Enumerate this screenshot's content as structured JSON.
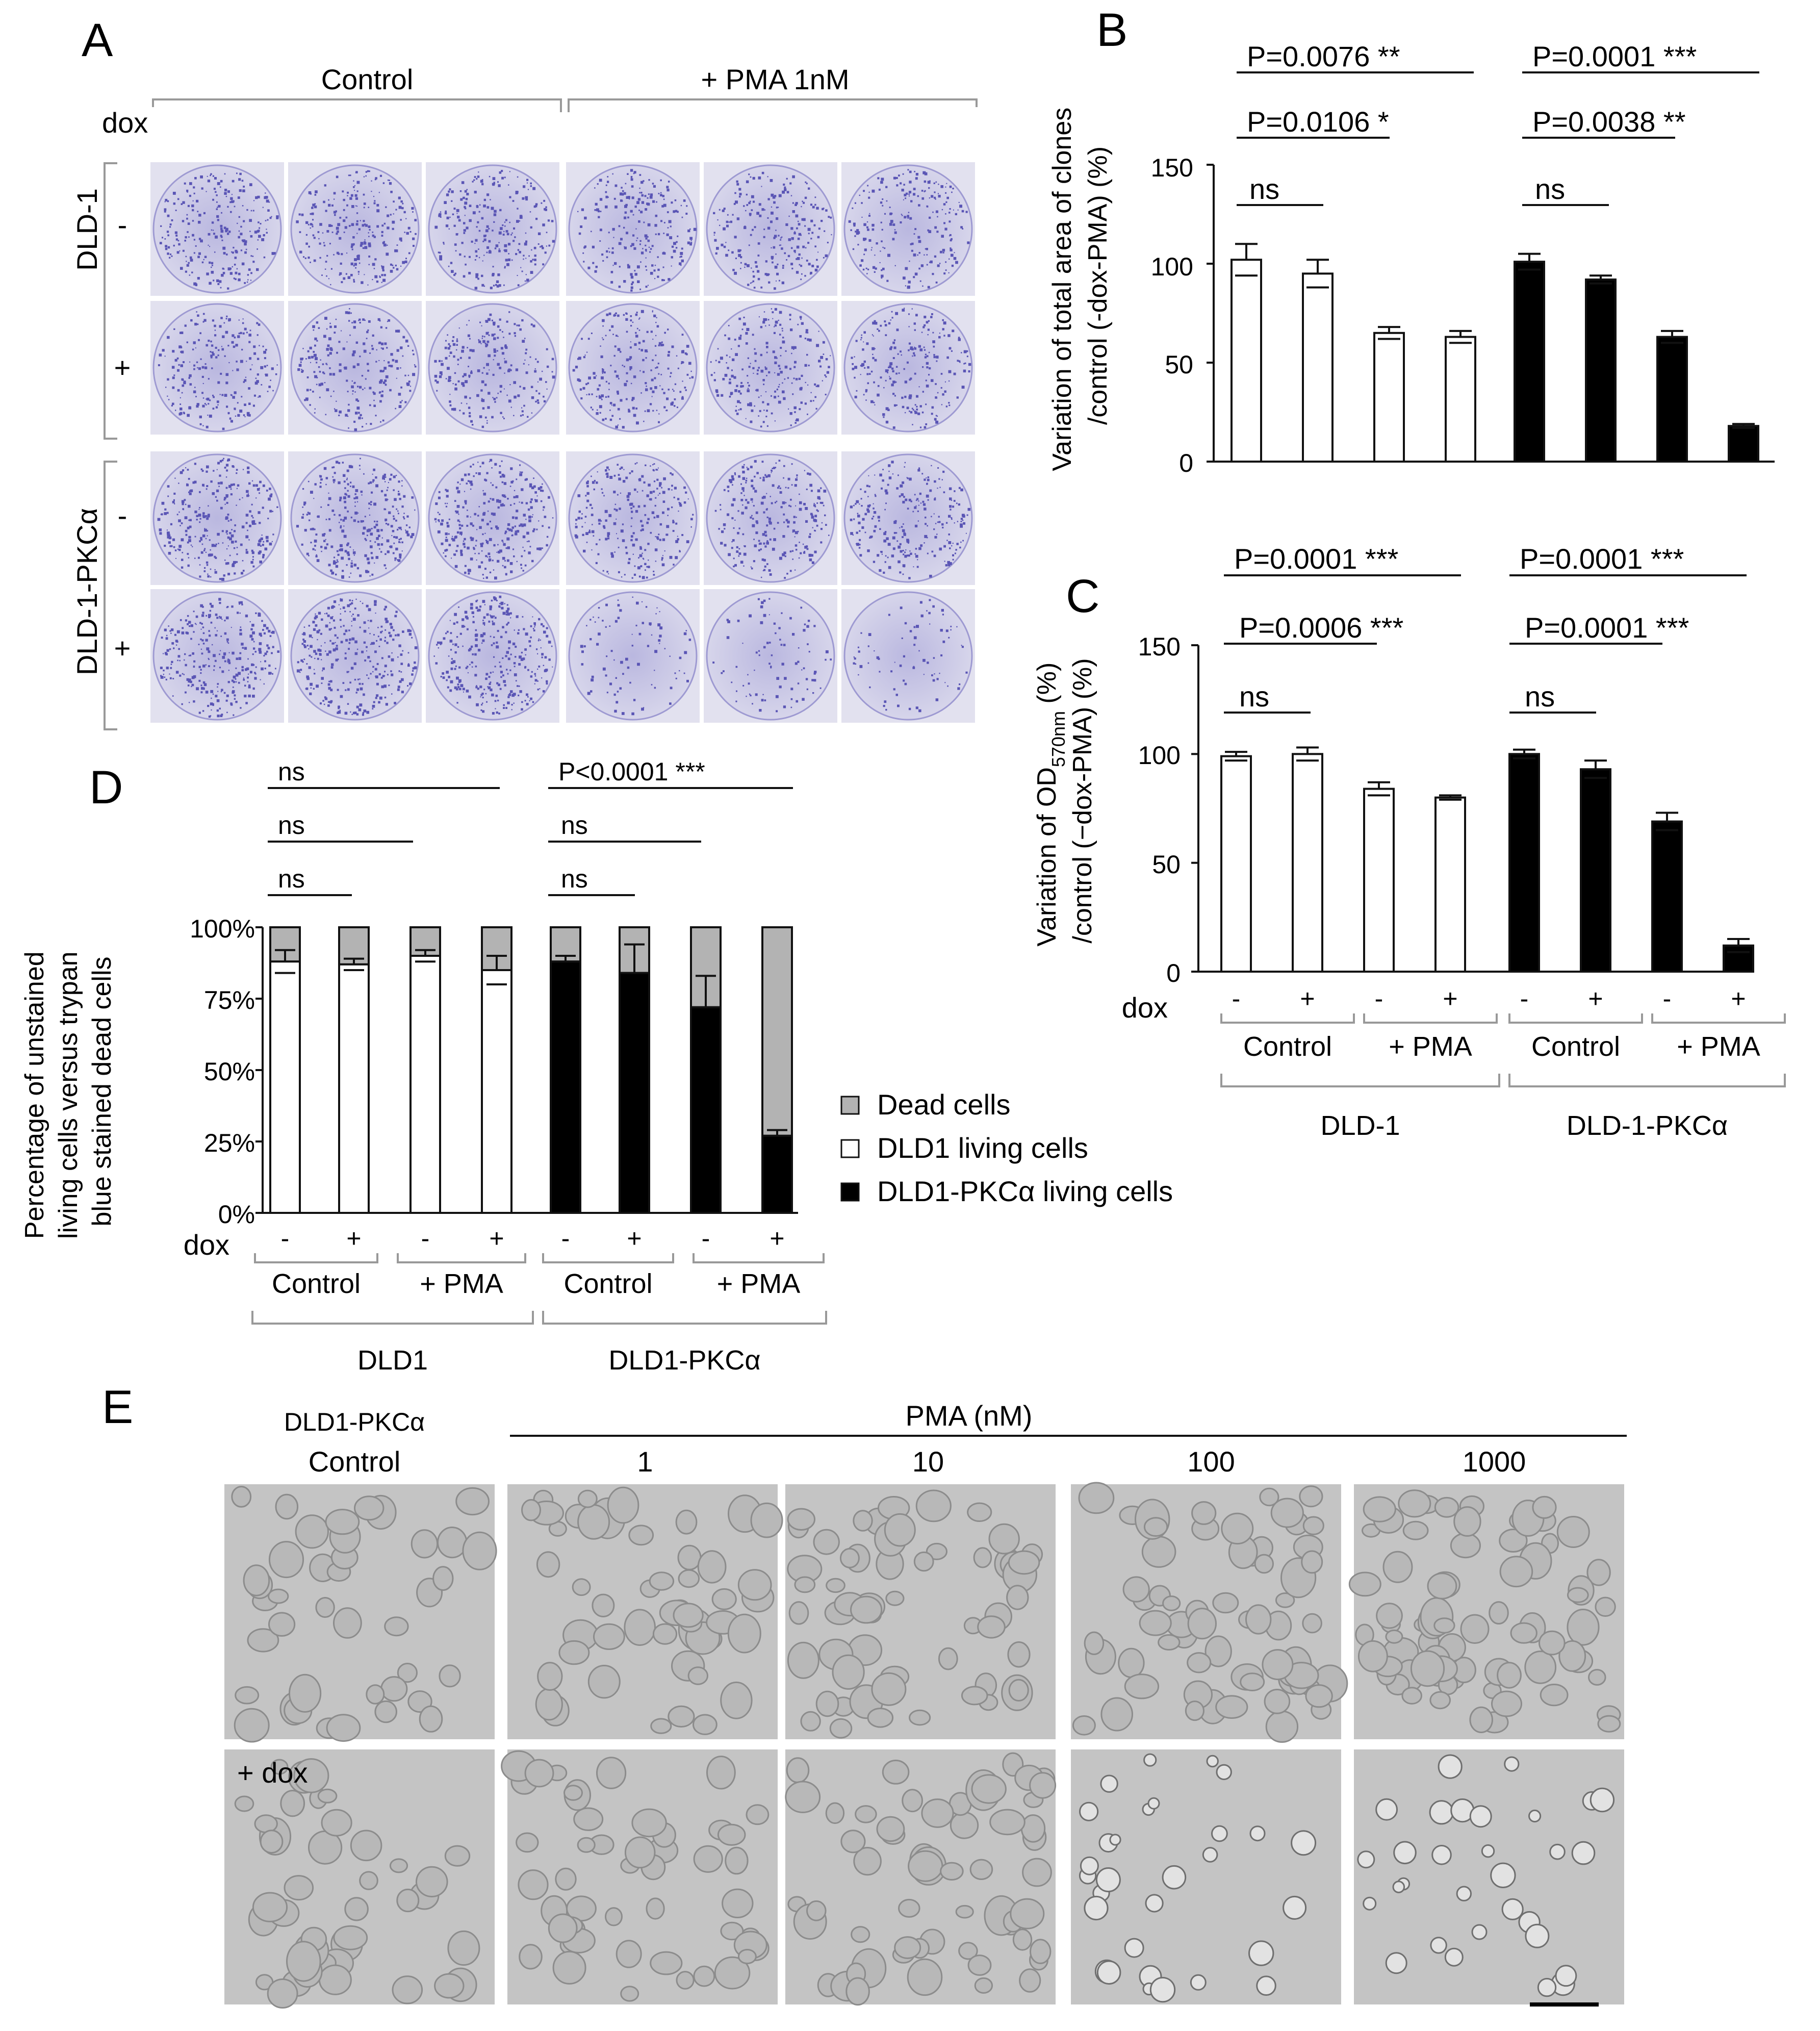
{
  "panelA": {
    "letter": "A",
    "group_labels": [
      "Control",
      "+ PMA 1nM"
    ],
    "dox_label": "dox",
    "row_groups": [
      "DLD-1",
      "DLD-1-PKCα"
    ],
    "dox_signs": [
      "-",
      "+",
      "-",
      "+"
    ]
  },
  "panelB": {
    "letter": "B",
    "ylabel_line1": "Variation of total  area of clones",
    "ylabel_line2": "/control (-dox-PMA) (%)",
    "ticks": [
      "0",
      "50",
      "100",
      "150"
    ],
    "sig": [
      {
        "text": "P=0.0076 **"
      },
      {
        "text": "P=0.0106 *"
      },
      {
        "text": "ns"
      },
      {
        "text": "P=0.0001 ***"
      },
      {
        "text": "P=0.0038 **"
      },
      {
        "text": "ns"
      }
    ]
  },
  "panelC": {
    "letter": "C",
    "ylabel_line1": "Variation of OD",
    "ylabel_sub": "570nm",
    "ylabel_line2": "/control (−dox-PMA) (%)",
    "ticks": [
      "0",
      "50",
      "100",
      "150"
    ],
    "dox_label": "dox",
    "dox_signs": [
      "-",
      "+",
      "-",
      "+",
      "-",
      "+",
      "-",
      "+"
    ],
    "treatments": [
      "Control",
      "+ PMA",
      "Control",
      "+ PMA"
    ],
    "cell_lines": [
      "DLD-1",
      "DLD-1-PKCα"
    ],
    "sig": [
      {
        "text": "P=0.0001 ***"
      },
      {
        "text": "P=0.0006 ***"
      },
      {
        "text": "ns"
      },
      {
        "text": "P=0.0001 ***"
      },
      {
        "text": "P=0.0001 ***"
      },
      {
        "text": "ns"
      }
    ]
  },
  "panelD": {
    "letter": "D",
    "ylabel_line1": "Percentage of unstained",
    "ylabel_line2": "living cells versus trypan",
    "ylabel_line3": "blue stained dead cells",
    "ticks": [
      "0%",
      "25%",
      "50%",
      "75%",
      "100%"
    ],
    "dox_label": "dox",
    "dox_signs": [
      "-",
      "+",
      "-",
      "+",
      "-",
      "+",
      "-",
      "+"
    ],
    "treatments": [
      "Control",
      "+ PMA",
      "Control",
      "+ PMA"
    ],
    "cell_lines": [
      "DLD1",
      "DLD1-PKCα"
    ],
    "legend": [
      "Dead cells",
      "DLD1 living cells",
      "DLD1-PKCα living cells"
    ],
    "sig": [
      {
        "text": "ns"
      },
      {
        "text": "ns"
      },
      {
        "text": "ns"
      },
      {
        "text": "P<0.0001 ***"
      },
      {
        "text": "ns"
      },
      {
        "text": "ns"
      }
    ]
  },
  "panelE": {
    "letter": "E",
    "row_header_line1": "DLD1-PKCα",
    "row_header_line2": "Control",
    "pma_title": "PMA (nM)",
    "concentrations": [
      "1",
      "10",
      "100",
      "1000"
    ],
    "dox_tag": "+ dox"
  },
  "colors": {
    "dead": "#b3b3b3",
    "dld1_living": "#ffffff",
    "pkc_living": "#000000",
    "stain": "#5a55b5",
    "plate_bg": "#e2e1ef",
    "micro_bg": "#c4c4c4"
  },
  "chart_data": [
    {
      "type": "bar",
      "ylabel": "Variation of total  area of clones /control (-dox-PMA) (%)",
      "ylim": [
        0,
        150
      ],
      "categories": [
        "DLD-1 Control -dox",
        "DLD-1 Control +dox",
        "DLD-1 +PMA -dox",
        "DLD-1 +PMA +dox",
        "DLD-1-PKCα Control -dox",
        "DLD-1-PKCα Control +dox",
        "DLD-1-PKCα +PMA -dox",
        "DLD-1-PKCα +PMA +dox"
      ],
      "values": [
        102,
        95,
        65,
        63,
        101,
        92,
        63,
        18
      ],
      "errors": [
        8,
        7,
        3,
        3,
        4,
        2,
        3,
        1
      ],
      "fills": [
        "#ffffff",
        "#ffffff",
        "#ffffff",
        "#ffffff",
        "#000000",
        "#000000",
        "#000000",
        "#000000"
      ]
    },
    {
      "type": "bar",
      "ylabel": "Variation of OD570nm /control (−dox-PMA) (%)",
      "ylim": [
        0,
        150
      ],
      "categories": [
        "DLD-1 Control -dox",
        "DLD-1 Control +dox",
        "DLD-1 +PMA -dox",
        "DLD-1 +PMA +dox",
        "DLD-1-PKCα Control -dox",
        "DLD-1-PKCα Control +dox",
        "DLD-1-PKCα +PMA -dox",
        "DLD-1-PKCα +PMA +dox"
      ],
      "values": [
        99,
        100,
        84,
        80,
        100,
        93,
        69,
        12
      ],
      "errors": [
        2,
        3,
        3,
        1,
        2,
        4,
        4,
        3
      ],
      "fills": [
        "#ffffff",
        "#ffffff",
        "#ffffff",
        "#ffffff",
        "#000000",
        "#000000",
        "#000000",
        "#000000"
      ]
    },
    {
      "type": "bar",
      "stacked": true,
      "ylabel": "Percentage of unstained living cells versus trypan blue stained dead cells",
      "ylim": [
        0,
        100
      ],
      "categories": [
        "DLD1 Control -dox",
        "DLD1 Control +dox",
        "DLD1 +PMA -dox",
        "DLD1 +PMA +dox",
        "DLD1-PKCα Control -dox",
        "DLD1-PKCα Control +dox",
        "DLD1-PKCα +PMA -dox",
        "DLD1-PKCα +PMA +dox"
      ],
      "series": [
        {
          "name": "DLD1 living cells",
          "values": [
            88,
            87,
            90,
            85,
            0,
            0,
            0,
            0
          ],
          "errors": [
            4,
            2,
            2,
            5,
            0,
            0,
            0,
            0
          ]
        },
        {
          "name": "DLD1-PKCα living cells",
          "values": [
            0,
            0,
            0,
            0,
            88,
            84,
            72,
            27
          ],
          "errors": [
            0,
            0,
            0,
            0,
            2,
            10,
            11,
            2
          ]
        },
        {
          "name": "Dead cells",
          "values": [
            12,
            13,
            10,
            15,
            12,
            16,
            28,
            73
          ]
        }
      ],
      "legend_position": "right"
    }
  ]
}
